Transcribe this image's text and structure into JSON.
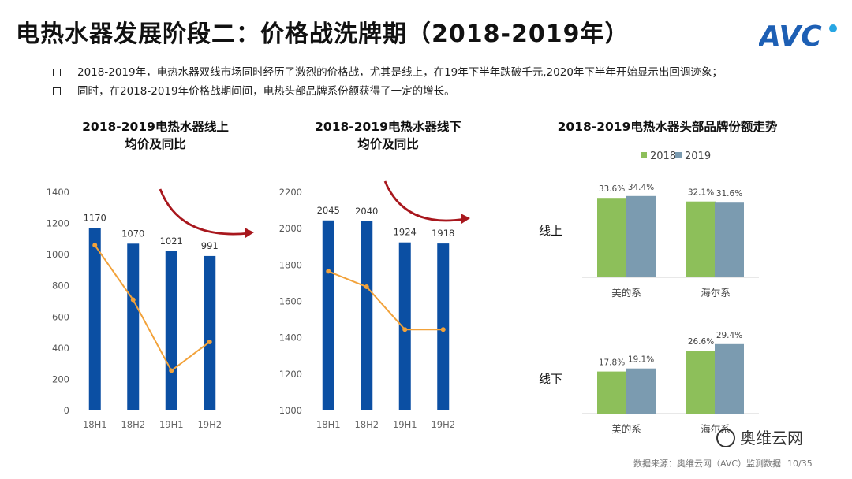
{
  "slide": {
    "title": "电热水器发展阶段二：价格战洗牌期（2018-2019年）",
    "logo_text": "AVC",
    "bullets": [
      "2018-2019年，电热水器双线市场同时经历了激烈的价格战，尤其是线上，在19年下半年跌破千元,2020年下半年开始显示出回调迹象；",
      "同时，在2018-2019年价格战期间间，电热头部品牌系份额获得了一定的增长。"
    ],
    "footer_source": "数据来源：奥维云网（AVC）监测数据",
    "footer_page": "10/35",
    "wechat_label": "奥维云网"
  },
  "colors": {
    "bar_blue": "#0b4fa3",
    "line_orange": "#f2a23a",
    "arrow_red": "#a8171d",
    "green": "#8dbf5a",
    "steel": "#7b9bb0"
  },
  "chart_data": [
    {
      "type": "bar",
      "title_line1": "2018-2019电热水器线上",
      "title_line2": "均价及同比",
      "categories": [
        "18H1",
        "18H2",
        "19H1",
        "19H2"
      ],
      "values": [
        1170,
        1070,
        1021,
        991
      ],
      "value_labels": [
        "1170",
        "1070",
        "1021",
        "991"
      ],
      "ylim": [
        0,
        1400
      ],
      "yticks": [
        "0",
        "200",
        "400",
        "600",
        "800",
        "1000",
        "1200",
        "1400"
      ],
      "line_series": {
        "name": "同比",
        "values": [
          1060,
          710,
          255,
          440
        ]
      }
    },
    {
      "type": "bar",
      "title_line1": "2018-2019电热水器线下",
      "title_line2": "均价及同比",
      "categories": [
        "18H1",
        "18H2",
        "19H1",
        "19H2"
      ],
      "values": [
        2045,
        2040,
        1924,
        1918
      ],
      "value_labels": [
        "2045",
        "2040",
        "1924",
        "1918"
      ],
      "ylim": [
        1000,
        2200
      ],
      "yticks": [
        "1000",
        "1200",
        "1400",
        "1600",
        "1800",
        "2000",
        "2200"
      ],
      "line_series": {
        "name": "同比",
        "values": [
          1765,
          1680,
          1445,
          1445
        ]
      }
    },
    {
      "type": "bar",
      "title": "2018-2019电热水器头部品牌份额走势",
      "legend": [
        "2018",
        "2019"
      ],
      "panels": [
        {
          "label": "线上",
          "categories": [
            "美的系",
            "海尔系"
          ],
          "series": [
            {
              "name": "2018",
              "values": [
                33.6,
                32.1
              ],
              "labels": [
                "33.6%",
                "32.1%"
              ]
            },
            {
              "name": "2019",
              "values": [
                34.4,
                31.6
              ],
              "labels": [
                "34.4%",
                "31.6%"
              ]
            }
          ]
        },
        {
          "label": "线下",
          "categories": [
            "美的系",
            "海尔系"
          ],
          "series": [
            {
              "name": "2018",
              "values": [
                17.8,
                26.6
              ],
              "labels": [
                "17.8%",
                "26.6%"
              ]
            },
            {
              "name": "2019",
              "values": [
                19.1,
                29.4
              ],
              "labels": [
                "19.1%",
                "29.4%"
              ]
            }
          ]
        }
      ]
    }
  ]
}
